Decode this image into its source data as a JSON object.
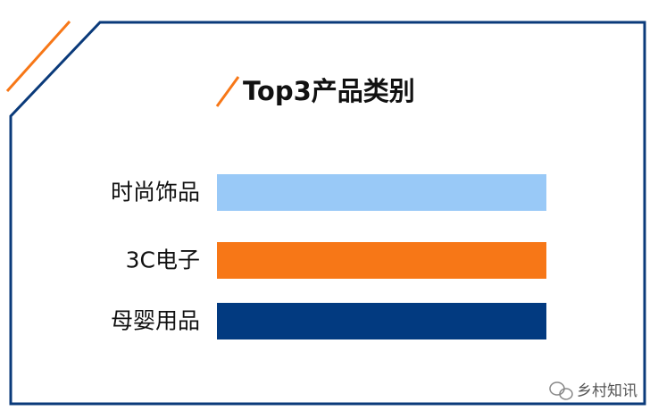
{
  "title": "Top3产品类别",
  "items": [
    {
      "label": "时尚饰品",
      "color": "#99c9f7"
    },
    {
      "label": "3C电子",
      "color": "#f77717"
    },
    {
      "label": "母婴用品",
      "color": "#023a80"
    }
  ],
  "watermark": "乡村知讯"
}
